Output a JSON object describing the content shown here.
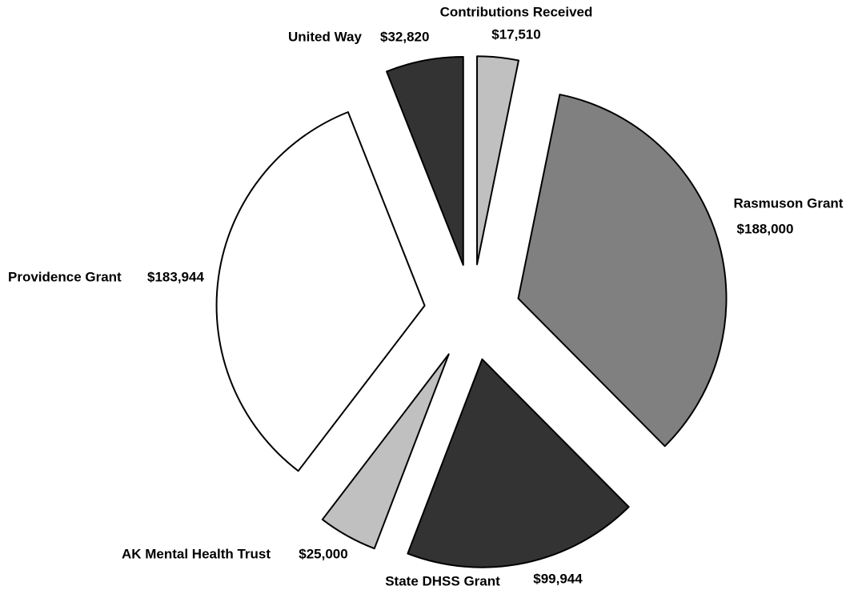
{
  "chart_data": {
    "type": "pie",
    "categories": [
      "Contributions Received",
      "Rasmuson Grant",
      "State DHSS Grant",
      "AK Mental Health Trust",
      "Providence Grant",
      "United Way"
    ],
    "values": [
      17510,
      188000,
      99944,
      25000,
      183944,
      32820
    ],
    "value_labels": [
      "$17,510",
      "$188,000",
      "$99,944",
      "$25,000",
      "$183,944",
      "$32,820"
    ],
    "colors": [
      "#c0c0c0",
      "#808080",
      "#333333",
      "#c0c0c0",
      "#ffffff",
      "#333333"
    ],
    "exploded": true
  }
}
